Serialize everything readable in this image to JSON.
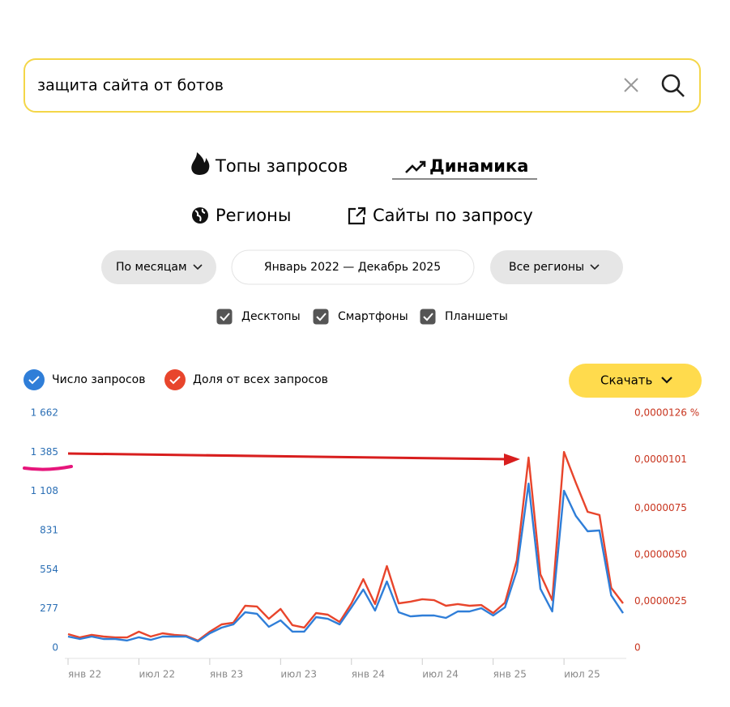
{
  "search": {
    "query": "защита сайта от ботов"
  },
  "tabs": [
    "Топы запросов",
    "Динамика",
    "Регионы",
    "Сайты по запросу"
  ],
  "active_tab": 1,
  "filters": {
    "period": "По месяцам",
    "range": "Январь 2022 — Декабрь 2025",
    "region": "Все регионы"
  },
  "devices": [
    {
      "label": "Десктопы",
      "checked": true
    },
    {
      "label": "Смартфоны",
      "checked": true
    },
    {
      "label": "Планшеты",
      "checked": true
    }
  ],
  "download": "Скачать",
  "chart_data": {
    "type": "line",
    "categories": [
      "янв 22",
      null,
      null,
      null,
      null,
      null,
      "июл 22",
      null,
      null,
      null,
      null,
      null,
      "янв 23",
      null,
      null,
      null,
      null,
      null,
      "июл 23",
      null,
      null,
      null,
      null,
      null,
      "янв 24",
      null,
      null,
      null,
      null,
      null,
      "июл 24",
      null,
      null,
      null,
      null,
      null,
      "янв 25",
      null,
      null,
      null,
      null,
      null,
      "июл 25",
      null,
      null,
      null,
      null,
      null
    ],
    "series": [
      {
        "name": "Число запросов",
        "color": "#2f7ed8",
        "axis": "y",
        "values": [
          80,
          63,
          80,
          63,
          63,
          52,
          75,
          57,
          80,
          80,
          80,
          46,
          103,
          143,
          166,
          252,
          241,
          149,
          195,
          115,
          115,
          218,
          206,
          166,
          287,
          413,
          264,
          470,
          252,
          223,
          229,
          229,
          212,
          258,
          258,
          281,
          229,
          287,
          544,
          1163,
          418,
          258,
          1112,
          934,
          825,
          831,
          372,
          246
        ]
      },
      {
        "name": "Доля от всех запросов",
        "color": "#e8452c",
        "axis": "y2",
        "values": [
          7.4e-07,
          5.6e-07,
          7e-07,
          6.1e-07,
          5.6e-07,
          5.6e-07,
          8.7e-07,
          6.1e-07,
          7.8e-07,
          7e-07,
          6.5e-07,
          3.9e-07,
          8.7e-07,
          1.26e-06,
          1.35e-06,
          2.26e-06,
          2.22e-06,
          1.56e-06,
          2.09e-06,
          1.22e-06,
          1.09e-06,
          1.87e-06,
          1.78e-06,
          1.39e-06,
          2.39e-06,
          3.69e-06,
          2.35e-06,
          4.39e-06,
          2.39e-06,
          2.48e-06,
          2.61e-06,
          2.56e-06,
          2.26e-06,
          2.35e-06,
          2.26e-06,
          2.3e-06,
          1.87e-06,
          2.43e-06,
          4.69e-06,
          1.021e-05,
          3.95e-06,
          2.56e-06,
          1.051e-05,
          8.86e-06,
          7.3e-06,
          7.13e-06,
          3.22e-06,
          2.39e-06
        ]
      }
    ],
    "ylim": [
      0,
      1662
    ],
    "yticks": [
      0,
      277,
      554,
      831,
      {
        "value": 1108,
        "label": "1 108"
      },
      {
        "value": 1385,
        "label": "1 385"
      },
      {
        "value": 1662,
        "label": "1 662"
      }
    ],
    "y2lim": [
      0,
      1.26e-05
    ],
    "y2ticks": [
      {
        "value": 0,
        "label": "0"
      },
      {
        "value": 2.5e-06,
        "label": "0,0000025"
      },
      {
        "value": 5e-06,
        "label": "0,0000050"
      },
      {
        "value": 7.5e-06,
        "label": "0,0000075"
      },
      {
        "value": 1.01e-05,
        "label": "0,0000101"
      },
      {
        "value": 1.26e-05,
        "label": "0,0000126 %"
      }
    ],
    "grid": false
  }
}
